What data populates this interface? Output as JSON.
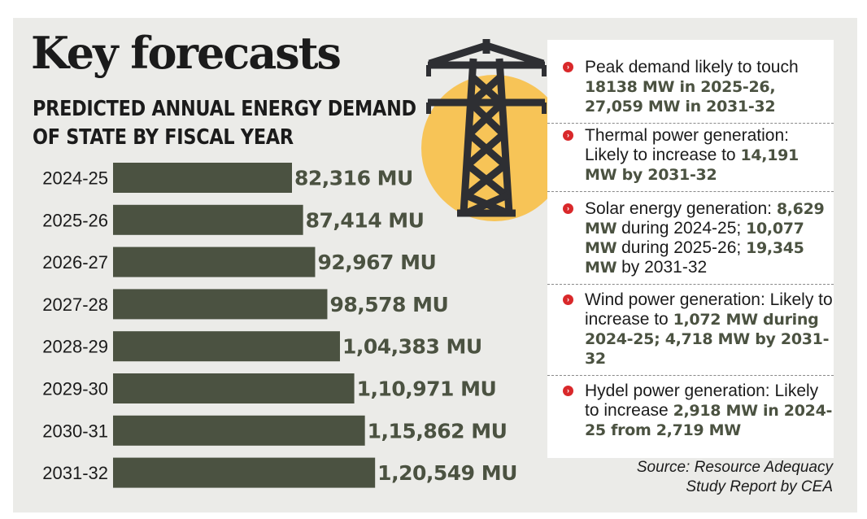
{
  "title": "Key forecasts",
  "subtitle": "PREDICTED ANNUAL ENERGY DEMAND OF STATE BY FISCAL YEAR",
  "colors": {
    "bar": "#4b5241",
    "sun": "#f7c457",
    "bullet": "#d9282a",
    "panel": "#ebebe8"
  },
  "chart_data": {
    "type": "bar",
    "orientation": "horizontal",
    "title": "PREDICTED ANNUAL ENERGY DEMAND OF STATE BY FISCAL YEAR",
    "categories": [
      "2024-25",
      "2025-26",
      "2026-27",
      "2027-28",
      "2028-29",
      "2029-30",
      "2030-31",
      "2031-32"
    ],
    "values": [
      82316,
      87414,
      92967,
      98578,
      104383,
      110971,
      115862,
      120549
    ],
    "value_labels": [
      "82,316 MU",
      "87,414 MU",
      "92,967 MU",
      "98,578 MU",
      "1,04,383 MU",
      "1,10,971 MU",
      "1,15,862 MU",
      "1,20,549 MU"
    ],
    "unit": "MU",
    "grid": false,
    "legend": "none"
  },
  "info_items": [
    {
      "icon": "red-bullet-icon",
      "parts": [
        {
          "text": "Peak demand likely to touch ",
          "bold": false
        },
        {
          "text": "18138 MW in 2025-26, 27,059 MW in 2031-32",
          "bold": true
        }
      ]
    },
    {
      "icon": "red-bullet-icon",
      "parts": [
        {
          "text": "Thermal power generation: Likely to increase to ",
          "bold": false
        },
        {
          "text": "14,191 MW by 2031-32",
          "bold": true
        }
      ]
    },
    {
      "icon": "red-bullet-icon",
      "parts": [
        {
          "text": "Solar energy generation: ",
          "bold": false
        },
        {
          "text": "8,629 MW",
          "bold": true
        },
        {
          "text": " during 2024-25; ",
          "bold": false
        },
        {
          "text": "10,077 MW",
          "bold": true
        },
        {
          "text": " during 2025-26; ",
          "bold": false
        },
        {
          "text": "19,345 MW",
          "bold": true
        },
        {
          "text": " by 2031-32",
          "bold": false
        }
      ]
    },
    {
      "icon": "red-bullet-icon",
      "parts": [
        {
          "text": "Wind power generation: Likely to increase to ",
          "bold": false
        },
        {
          "text": "1,072 MW during 2024-25; 4,718 MW by 2031-32",
          "bold": true
        }
      ]
    },
    {
      "icon": "red-bullet-icon",
      "parts": [
        {
          "text": "Hydel power generation: Likely to increase ",
          "bold": false
        },
        {
          "text": "2,918 MW in 2024-25 from 2,719 MW",
          "bold": true
        }
      ]
    }
  ],
  "source": "Source: Resource Adequacy Study Report by CEA"
}
